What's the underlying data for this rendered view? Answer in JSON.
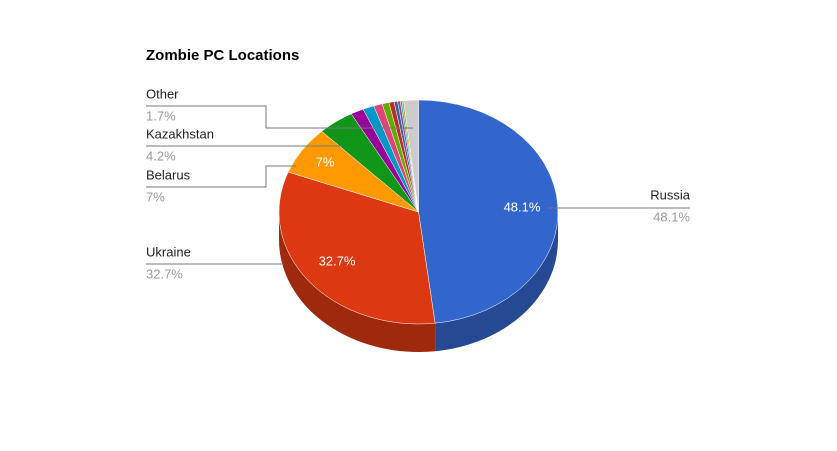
{
  "chart_data": {
    "type": "pie3d",
    "title": "Zombie PC Locations",
    "categories": [
      "Russia",
      "Ukraine",
      "Belarus",
      "Kazakhstan",
      null,
      null,
      null,
      null,
      null,
      null,
      null,
      null,
      null,
      "Other"
    ],
    "values": [
      48.1,
      32.7,
      7,
      4.2,
      1.5,
      1.3,
      1.0,
      0.8,
      0.6,
      0.4,
      0.3,
      0.2,
      0.2,
      1.7
    ],
    "value_labels": [
      "48.1%",
      "32.7%",
      "7%",
      "4.2%",
      null,
      null,
      null,
      null,
      null,
      null,
      null,
      null,
      null,
      "1.7%"
    ],
    "colors": [
      "#3366cc",
      "#dc3912",
      "#ff9900",
      "#109618",
      "#990099",
      "#0099c6",
      "#dd4477",
      "#66aa00",
      "#b82e2e",
      "#316395",
      "#994499",
      "#22aa99",
      "#aaaa11",
      "#cccccc"
    ]
  }
}
